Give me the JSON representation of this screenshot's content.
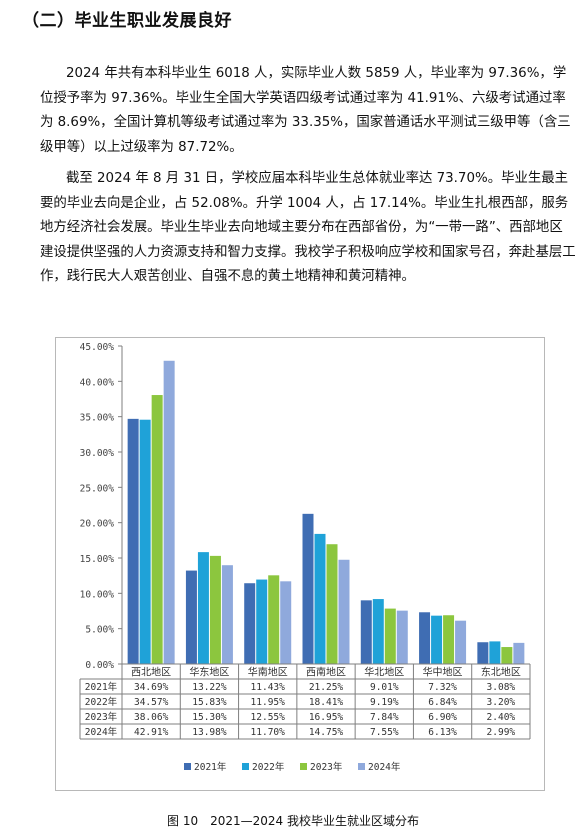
{
  "section_heading": "（二）毕业生职业发展良好",
  "paragraph_1": "2024 年共有本科毕业生 6018 人，实际毕业人数 5859 人，毕业率为 97.36%，学位授予率为 97.36%。毕业生全国大学英语四级考试通过率为 41.91%、六级考试通过率为 8.69%，全国计算机等级考试通过率为 33.35%，国家普通话水平测试三级甲等（含三级甲等）以上过级率为 87.72%。",
  "paragraph_2": "截至 2024 年 8 月 31 日，学校应届本科毕业生总体就业率达 73.70%。毕业生最主要的毕业去向是企业，占 52.08%。升学 1004 人，占 17.14%。毕业生扎根西部，服务地方经济社会发展。毕业生毕业去向地域主要分布在西部省份，为“一带一路”、西部地区建设提供坚强的人力资源支持和智力支撑。我校学子积极响应学校和国家号召，奔赴基层工作，践行民大人艰苦创业、自强不息的黄土地精神和黄河精神。",
  "figure_caption": "图 10　2021—2024 我校毕业生就业区域分布",
  "chart_data": {
    "type": "bar",
    "categories": [
      "西北地区",
      "华东地区",
      "华南地区",
      "西南地区",
      "华北地区",
      "华中地区",
      "东北地区"
    ],
    "series": [
      {
        "name": "2021年",
        "color": "#3f6db3",
        "values": [
          34.69,
          13.22,
          11.43,
          21.25,
          9.01,
          7.32,
          3.08
        ],
        "labels": [
          "34.69%",
          "13.22%",
          "11.43%",
          "21.25%",
          "9.01%",
          "7.32%",
          "3.08%"
        ]
      },
      {
        "name": "2022年",
        "color": "#1fa2d8",
        "values": [
          34.57,
          15.83,
          11.95,
          18.41,
          9.19,
          6.84,
          3.2
        ],
        "labels": [
          "34.57%",
          "15.83%",
          "11.95%",
          "18.41%",
          "9.19%",
          "6.84%",
          "3.20%"
        ]
      },
      {
        "name": "2023年",
        "color": "#8cc63e",
        "values": [
          38.06,
          15.3,
          12.55,
          16.95,
          7.84,
          6.9,
          2.4
        ],
        "labels": [
          "38.06%",
          "15.30%",
          "12.55%",
          "16.95%",
          "7.84%",
          "6.90%",
          "2.40%"
        ]
      },
      {
        "name": "2024年",
        "color": "#8fa9dc",
        "values": [
          42.91,
          13.98,
          11.7,
          14.75,
          7.55,
          6.13,
          2.99
        ],
        "labels": [
          "42.91%",
          "13.98%",
          "11.70%",
          "14.75%",
          "7.55%",
          "6.13%",
          "2.99%"
        ]
      }
    ],
    "ylim": [
      0,
      45
    ],
    "yticks": [
      0,
      5,
      10,
      15,
      20,
      25,
      30,
      35,
      40,
      45
    ],
    "ytick_labels": [
      "0.00%",
      "5.00%",
      "10.00%",
      "15.00%",
      "20.00%",
      "25.00%",
      "30.00%",
      "35.00%",
      "40.00%",
      "45.00%"
    ],
    "grid": false,
    "legend_position": "bottom",
    "data_table": true
  }
}
